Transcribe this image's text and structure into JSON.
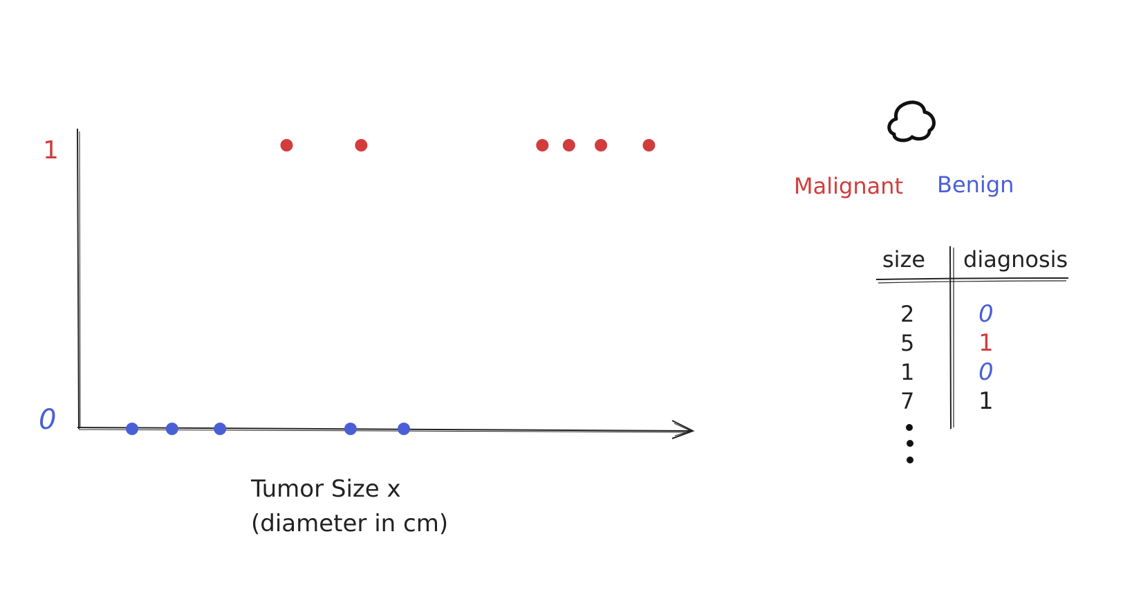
{
  "chart_data": {
    "type": "scatter",
    "xlabel_line1": "Tumor Size x",
    "xlabel_line2": "(diameter in cm)",
    "y_ticks": [
      {
        "label": "1",
        "value": 1,
        "color": "#d23c3c"
      },
      {
        "label": "0",
        "value": 0,
        "color": "#4a5fd6"
      }
    ],
    "ylim": [
      0,
      1
    ],
    "grid": false,
    "series": [
      {
        "name": "Malignant",
        "color": "#d23c3c",
        "x": [
          3.9,
          5.3,
          8.7,
          9.2,
          9.8,
          10.7
        ],
        "y": [
          1,
          1,
          1,
          1,
          1,
          1
        ]
      },
      {
        "name": "Benign",
        "color": "#4a5fd6",
        "x": [
          1.0,
          1.75,
          2.65,
          5.1,
          6.1
        ],
        "y": [
          0,
          0,
          0,
          0,
          0
        ]
      }
    ],
    "xlim": [
      0,
      11.5
    ]
  },
  "legend": {
    "icon": "tumor-icon",
    "items": [
      {
        "label": "Malignant",
        "color": "#d23c3c"
      },
      {
        "label": "Benign",
        "color": "#4a5fd6"
      }
    ]
  },
  "table": {
    "headers": [
      "size",
      "diagnosis"
    ],
    "rows": [
      {
        "size": "2",
        "diagnosis": "0",
        "color": "#4a5fd6"
      },
      {
        "size": "5",
        "diagnosis": "1",
        "color": "#d23c3c"
      },
      {
        "size": "1",
        "diagnosis": "0",
        "color": "#4a5fd6"
      },
      {
        "size": "7",
        "diagnosis": "1",
        "color": "#222222"
      }
    ],
    "continuation": "more-rows-ellipsis"
  }
}
